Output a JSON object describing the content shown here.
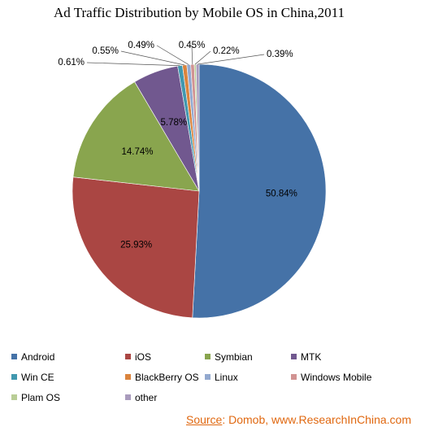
{
  "chart_data": {
    "type": "pie",
    "title": "Ad Traffic Distribution by Mobile OS in China,2011",
    "categories": [
      "Android",
      "iOS",
      "Symbian",
      "MTK",
      "Win CE",
      "BlackBerry OS",
      "Linux",
      "Windows Mobile",
      "Plam OS",
      "other"
    ],
    "values": [
      50.84,
      25.93,
      14.74,
      5.78,
      0.61,
      0.55,
      0.49,
      0.45,
      0.22,
      0.39
    ],
    "labels": [
      "50.84%",
      "25.93%",
      "14.74%",
      "5.78%",
      "0.61%",
      "0.55%",
      "0.49%",
      "0.45%",
      "0.22%",
      "0.39%"
    ],
    "colors": [
      "#4572a7",
      "#aa4643",
      "#89a54e",
      "#71588f",
      "#4198af",
      "#db843d",
      "#93a9cf",
      "#d19392",
      "#b9cd96",
      "#a99bbd"
    ],
    "legend_position": "bottom"
  },
  "source": {
    "label": "Source",
    "text": ": Domob, www.ResearchInChina.com"
  }
}
